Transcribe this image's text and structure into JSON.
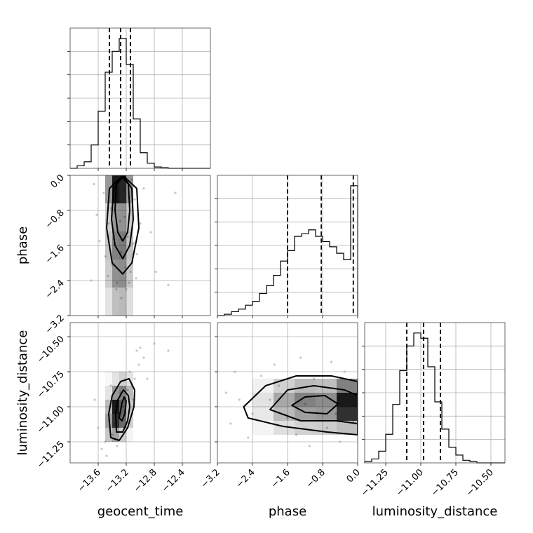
{
  "chart_data": {
    "type": "corner",
    "parameters": [
      "geocent_time",
      "phase",
      "luminosity_distance"
    ],
    "grid": true,
    "colors": {
      "line": "#000000",
      "grid": "#b0b0b0",
      "points": "#9a9a9a",
      "density": "#000000"
    },
    "axes": {
      "geocent_time": {
        "label": "geocent_time",
        "range": [
          -14.0,
          -12.0
        ],
        "ticks": [
          -13.6,
          -13.2,
          -12.8,
          -12.4
        ],
        "tick_labels": [
          "−13.6",
          "−13.2",
          "−12.8",
          "−12.4"
        ]
      },
      "phase": {
        "label": "phase",
        "range": [
          -3.2,
          0.0
        ],
        "ticks": [
          -3.2,
          -2.4,
          -1.6,
          -0.8,
          0.0
        ],
        "tick_labels": [
          "−3.2",
          "−2.4",
          "−1.6",
          "−0.8",
          "0.0"
        ]
      },
      "luminosity_distance": {
        "label": "luminosity_distance",
        "range": [
          -11.4,
          -10.4
        ],
        "ticks": [
          -11.25,
          -11.0,
          -10.75,
          -10.5
        ],
        "tick_labels": [
          "−11.25",
          "−11.00",
          "−10.75",
          "−10.50"
        ]
      }
    },
    "marginals": [
      {
        "parameter": "geocent_time",
        "bin_edges": [
          -14.0,
          -13.9,
          -13.8,
          -13.7,
          -13.6,
          -13.5,
          -13.4,
          -13.3,
          -13.2,
          -13.1,
          -13.0,
          -12.9,
          -12.8,
          -12.7,
          -12.6,
          -12.5,
          -12.4,
          -12.3,
          -12.2,
          -12.1,
          -12.0
        ],
        "counts": [
          0.0,
          0.02,
          0.05,
          0.18,
          0.44,
          0.74,
          0.9,
          1.0,
          0.8,
          0.38,
          0.12,
          0.04,
          0.01,
          0.005,
          0.0,
          0.0,
          0.0,
          0.0,
          0.0,
          0.0
        ],
        "quantiles": [
          -13.44,
          -13.28,
          -13.14
        ]
      },
      {
        "parameter": "phase",
        "bin_edges": [
          -3.2,
          -3.04,
          -2.88,
          -2.72,
          -2.56,
          -2.4,
          -2.24,
          -2.08,
          -1.92,
          -1.76,
          -1.6,
          -1.44,
          -1.28,
          -1.12,
          -0.96,
          -0.8,
          -0.64,
          -0.48,
          -0.32,
          -0.16,
          0.0
        ],
        "counts": [
          0.0,
          0.01,
          0.03,
          0.05,
          0.08,
          0.11,
          0.17,
          0.23,
          0.31,
          0.42,
          0.5,
          0.61,
          0.63,
          0.66,
          0.61,
          0.57,
          0.53,
          0.48,
          0.43,
          1.0
        ],
        "quantiles": [
          -1.6,
          -0.83,
          -0.1
        ]
      },
      {
        "parameter": "luminosity_distance",
        "bin_edges": [
          -11.4,
          -11.35,
          -11.3,
          -11.25,
          -11.2,
          -11.15,
          -11.1,
          -11.05,
          -11.0,
          -10.95,
          -10.9,
          -10.85,
          -10.8,
          -10.75,
          -10.7,
          -10.65,
          -10.6,
          -10.55,
          -10.5,
          -10.45,
          -10.4
        ],
        "counts": [
          0.01,
          0.03,
          0.09,
          0.22,
          0.45,
          0.71,
          0.9,
          1.0,
          0.96,
          0.74,
          0.47,
          0.26,
          0.12,
          0.06,
          0.02,
          0.01,
          0.0,
          0.0,
          0.0,
          0.0
        ],
        "quantiles": [
          -11.1,
          -10.98,
          -10.86
        ]
      }
    ],
    "pairs": [
      {
        "x": "geocent_time",
        "y": "phase",
        "density_x_edges": [
          -13.5,
          -13.4,
          -13.3,
          -13.2,
          -13.1
        ],
        "density_y_edges": [
          -3.2,
          -2.56,
          -1.92,
          -1.28,
          -0.64,
          0.0
        ],
        "density": [
          [
            0.12,
            0.28,
            0.3,
            0.14
          ],
          [
            0.22,
            0.48,
            0.5,
            0.24
          ],
          [
            0.26,
            0.55,
            0.58,
            0.28
          ],
          [
            0.2,
            0.45,
            0.48,
            0.22
          ],
          [
            0.45,
            1.0,
            0.95,
            0.45
          ]
        ],
        "contours": [
          [
            [
              -13.25,
              -0.05
            ],
            [
              -13.17,
              -0.2
            ],
            [
              -13.15,
              -0.8
            ],
            [
              -13.18,
              -1.3
            ],
            [
              -13.25,
              -1.5
            ],
            [
              -13.32,
              -1.3
            ],
            [
              -13.36,
              -0.8
            ],
            [
              -13.34,
              -0.2
            ]
          ],
          [
            [
              -13.25,
              0.0
            ],
            [
              -13.12,
              -0.3
            ],
            [
              -13.1,
              -1.0
            ],
            [
              -13.15,
              -1.6
            ],
            [
              -13.25,
              -1.9
            ],
            [
              -13.36,
              -1.6
            ],
            [
              -13.41,
              -1.0
            ],
            [
              -13.38,
              -0.3
            ]
          ],
          [
            [
              -13.25,
              0.0
            ],
            [
              -13.05,
              -0.3
            ],
            [
              -13.02,
              -1.2
            ],
            [
              -13.12,
              -2.0
            ],
            [
              -13.25,
              -2.25
            ],
            [
              -13.4,
              -2.0
            ],
            [
              -13.48,
              -1.2
            ],
            [
              -13.44,
              -0.3
            ]
          ]
        ],
        "points": [
          [
            -13.36,
            -0.15
          ],
          [
            -13.31,
            -0.6
          ],
          [
            -13.22,
            -0.95
          ],
          [
            -13.18,
            -1.4
          ],
          [
            -13.27,
            -1.75
          ],
          [
            -13.4,
            -2.05
          ],
          [
            -13.14,
            -2.2
          ],
          [
            -13.45,
            -1.1
          ],
          [
            -13.08,
            -0.55
          ],
          [
            -13.52,
            -0.4
          ],
          [
            -13.33,
            -2.45
          ],
          [
            -13.2,
            -2.6
          ],
          [
            -13.05,
            -1.8
          ],
          [
            -13.58,
            -1.5
          ],
          [
            -13.12,
            -0.1
          ],
          [
            -13.46,
            -2.3
          ],
          [
            -13.0,
            -1.1
          ],
          [
            -13.62,
            -0.9
          ],
          [
            -13.27,
            -2.8
          ],
          [
            -12.95,
            -0.3
          ],
          [
            -13.38,
            -1.45
          ],
          [
            -13.24,
            -0.35
          ],
          [
            -13.16,
            -2.45
          ],
          [
            -13.5,
            -1.85
          ],
          [
            -13.29,
            -1.05
          ],
          [
            -13.1,
            -1.55
          ],
          [
            -13.42,
            -0.75
          ],
          [
            -13.21,
            -2.1
          ],
          [
            -13.34,
            -2.6
          ],
          [
            -13.06,
            -2.35
          ],
          [
            -12.85,
            -1.3
          ],
          [
            -12.6,
            -2.5
          ],
          [
            -12.5,
            -0.4
          ],
          [
            -13.7,
            -2.4
          ],
          [
            -13.66,
            -0.2
          ],
          [
            -12.78,
            -2.2
          ]
        ]
      },
      {
        "x": "geocent_time",
        "y": "luminosity_distance",
        "density_x_edges": [
          -13.5,
          -13.4,
          -13.3,
          -13.2,
          -13.1
        ],
        "density_y_edges": [
          -11.25,
          -11.15,
          -11.05,
          -10.95,
          -10.85,
          -10.75
        ],
        "density": [
          [
            0.25,
            0.4,
            0.2,
            0.05
          ],
          [
            0.42,
            0.9,
            0.65,
            0.2
          ],
          [
            0.3,
            1.0,
            0.7,
            0.25
          ],
          [
            0.12,
            0.45,
            0.55,
            0.3
          ],
          [
            0.03,
            0.12,
            0.2,
            0.12
          ]
        ],
        "contours": [
          [
            [
              -13.3,
              -11.08
            ],
            [
              -13.26,
              -10.97
            ],
            [
              -13.23,
              -10.93
            ],
            [
              -13.2,
              -10.96
            ],
            [
              -13.22,
              -11.05
            ],
            [
              -13.26,
              -11.1
            ]
          ],
          [
            [
              -13.34,
              -11.18
            ],
            [
              -13.35,
              -11.05
            ],
            [
              -13.32,
              -10.95
            ],
            [
              -13.24,
              -10.88
            ],
            [
              -13.17,
              -10.92
            ],
            [
              -13.15,
              -11.0
            ],
            [
              -13.18,
              -11.1
            ],
            [
              -13.25,
              -11.18
            ]
          ],
          [
            [
              -13.42,
              -11.22
            ],
            [
              -13.45,
              -11.05
            ],
            [
              -13.4,
              -10.92
            ],
            [
              -13.28,
              -10.82
            ],
            [
              -13.16,
              -10.8
            ],
            [
              -13.08,
              -10.88
            ],
            [
              -13.09,
              -11.0
            ],
            [
              -13.18,
              -11.15
            ],
            [
              -13.3,
              -11.24
            ]
          ]
        ],
        "points": [
          [
            -13.3,
            -11.05
          ],
          [
            -13.22,
            -10.95
          ],
          [
            -13.35,
            -11.12
          ],
          [
            -13.18,
            -10.88
          ],
          [
            -13.4,
            -11.2
          ],
          [
            -13.12,
            -10.85
          ],
          [
            -13.25,
            -11.0
          ],
          [
            -13.45,
            -11.1
          ],
          [
            -13.08,
            -10.8
          ],
          [
            -13.5,
            -11.25
          ],
          [
            -13.15,
            -10.75
          ],
          [
            -13.02,
            -10.7
          ],
          [
            -13.55,
            -11.3
          ],
          [
            -13.28,
            -10.9
          ],
          [
            -13.38,
            -10.98
          ],
          [
            -13.2,
            -11.15
          ],
          [
            -13.1,
            -10.95
          ],
          [
            -12.95,
            -10.65
          ],
          [
            -13.6,
            -11.15
          ],
          [
            -13.33,
            -11.28
          ],
          [
            -12.9,
            -10.8
          ],
          [
            -13.42,
            -10.85
          ],
          [
            -13.05,
            -10.6
          ],
          [
            -13.48,
            -11.35
          ],
          [
            -12.8,
            -10.55
          ],
          [
            -12.6,
            -10.6
          ],
          [
            -13.65,
            -10.95
          ],
          [
            -13.0,
            -10.58
          ]
        ]
      },
      {
        "x": "phase",
        "y": "luminosity_distance",
        "density_x_edges": [
          -2.4,
          -1.92,
          -1.44,
          -0.96,
          -0.48,
          0.0
        ],
        "density_y_edges": [
          -11.2,
          -11.1,
          -11.0,
          -10.9,
          -10.8
        ],
        "density": [
          [
            0.05,
            0.14,
            0.2,
            0.22,
            0.28
          ],
          [
            0.1,
            0.3,
            0.42,
            0.45,
            0.9
          ],
          [
            0.12,
            0.38,
            0.55,
            0.5,
            1.0
          ],
          [
            0.06,
            0.2,
            0.3,
            0.28,
            0.55
          ]
        ],
        "contours": [
          [
            [
              -1.5,
              -10.99
            ],
            [
              -1.2,
              -10.93
            ],
            [
              -0.75,
              -10.92
            ],
            [
              -0.45,
              -10.98
            ],
            [
              -0.7,
              -11.05
            ],
            [
              -1.2,
              -11.04
            ]
          ],
          [
            [
              -2.0,
              -11.02
            ],
            [
              -1.6,
              -10.88
            ],
            [
              -1.0,
              -10.85
            ],
            [
              -0.3,
              -10.88
            ],
            [
              0.0,
              -10.92
            ],
            [
              0.0,
              -11.12
            ],
            [
              -0.5,
              -11.1
            ],
            [
              -1.3,
              -11.1
            ]
          ],
          [
            [
              -2.6,
              -11.0
            ],
            [
              -2.1,
              -10.85
            ],
            [
              -1.4,
              -10.78
            ],
            [
              -0.6,
              -10.78
            ],
            [
              0.0,
              -10.82
            ],
            [
              0.0,
              -11.2
            ],
            [
              -0.7,
              -11.18
            ],
            [
              -1.7,
              -11.14
            ],
            [
              -2.5,
              -11.08
            ]
          ]
        ],
        "points": [
          [
            -1.2,
            -10.98
          ],
          [
            -0.9,
            -10.92
          ],
          [
            -0.5,
            -11.05
          ],
          [
            -1.6,
            -11.08
          ],
          [
            -2.0,
            -10.95
          ],
          [
            -0.2,
            -11.0
          ],
          [
            -2.4,
            -11.05
          ],
          [
            -1.0,
            -10.8
          ],
          [
            -0.7,
            -11.15
          ],
          [
            -1.8,
            -10.85
          ],
          [
            -2.7,
            -10.95
          ],
          [
            -2.9,
            -11.12
          ],
          [
            -0.3,
            -10.75
          ],
          [
            -1.4,
            -11.2
          ],
          [
            -0.1,
            -11.1
          ],
          [
            -2.2,
            -10.78
          ],
          [
            -3.0,
            -10.9
          ],
          [
            -1.1,
            -11.28
          ],
          [
            -0.6,
            -10.68
          ],
          [
            -2.5,
            -11.22
          ],
          [
            -1.9,
            -10.7
          ],
          [
            -0.4,
            -11.25
          ],
          [
            -2.8,
            -10.75
          ],
          [
            -1.3,
            -10.65
          ]
        ]
      }
    ]
  }
}
